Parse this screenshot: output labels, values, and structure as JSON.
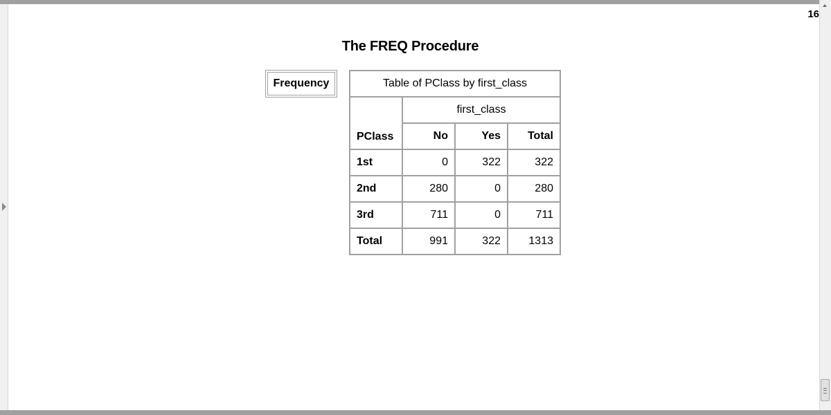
{
  "page": {
    "number": "16"
  },
  "report": {
    "procedure_title": "The FREQ Procedure",
    "legend_label": "Frequency",
    "table": {
      "title": "Table of PClass by first_class",
      "column_variable": "first_class",
      "row_variable": "PClass",
      "column_headers": [
        "No",
        "Yes",
        "Total"
      ],
      "rows": [
        {
          "label": "1st",
          "values": [
            "0",
            "322",
            "322"
          ]
        },
        {
          "label": "2nd",
          "values": [
            "280",
            "0",
            "280"
          ]
        },
        {
          "label": "3rd",
          "values": [
            "711",
            "0",
            "711"
          ]
        },
        {
          "label": "Total",
          "values": [
            "991",
            "322",
            "1313"
          ]
        }
      ]
    }
  },
  "colors": {
    "border": "#a0a0a0",
    "frame_bar": "#a0a0a0",
    "background": "#ffffff"
  },
  "icons": {
    "left_panel_toggle": "triangle-right-icon",
    "scroll_up": "triangle-up-icon",
    "scroll_thumb_grip": "grip-lines-icon"
  }
}
